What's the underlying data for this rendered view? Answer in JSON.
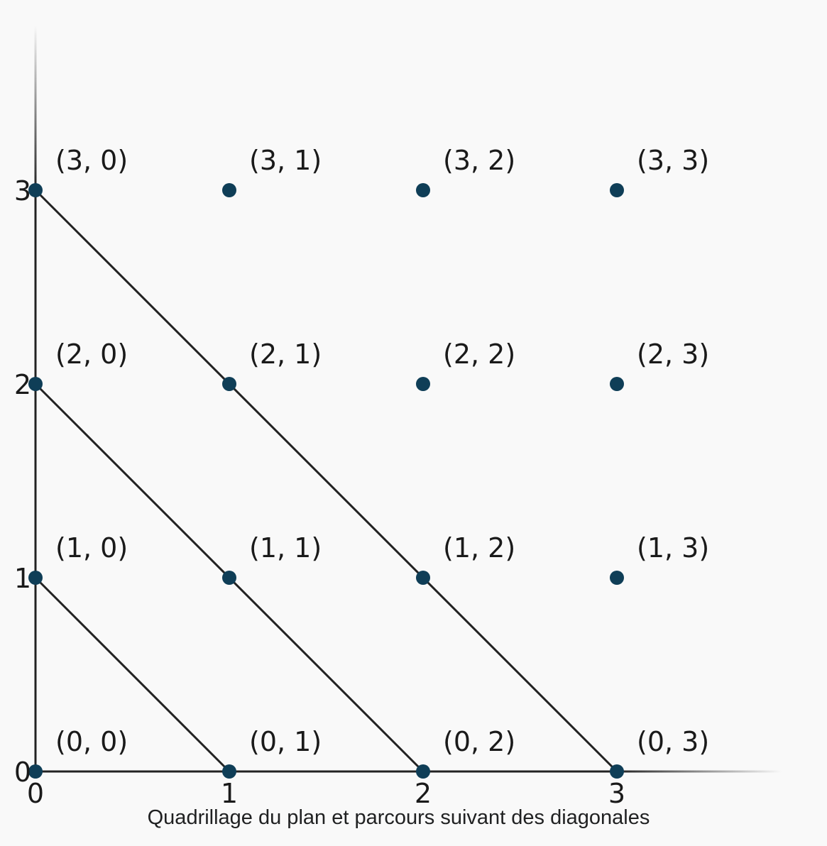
{
  "chart_data": {
    "type": "scatter",
    "title": "",
    "xlabel": "",
    "ylabel": "",
    "xlim": [
      0,
      3.85
    ],
    "ylim": [
      0,
      3.85
    ],
    "x_ticks": [
      "0",
      "1",
      "2",
      "3"
    ],
    "y_ticks": [
      "0",
      "1",
      "2",
      "3"
    ],
    "grid": "dotted",
    "points": [
      {
        "x": 0,
        "y": 0,
        "label": "(0, 0)"
      },
      {
        "x": 1,
        "y": 0,
        "label": "(0, 1)"
      },
      {
        "x": 2,
        "y": 0,
        "label": "(0, 2)"
      },
      {
        "x": 3,
        "y": 0,
        "label": "(0, 3)"
      },
      {
        "x": 0,
        "y": 1,
        "label": "(1, 0)"
      },
      {
        "x": 1,
        "y": 1,
        "label": "(1, 1)"
      },
      {
        "x": 2,
        "y": 1,
        "label": "(1, 2)"
      },
      {
        "x": 3,
        "y": 1,
        "label": "(1, 3)"
      },
      {
        "x": 0,
        "y": 2,
        "label": "(2, 0)"
      },
      {
        "x": 1,
        "y": 2,
        "label": "(2, 1)"
      },
      {
        "x": 2,
        "y": 2,
        "label": "(2, 2)"
      },
      {
        "x": 3,
        "y": 2,
        "label": "(2, 3)"
      },
      {
        "x": 0,
        "y": 3,
        "label": "(3, 0)"
      },
      {
        "x": 1,
        "y": 3,
        "label": "(3, 1)"
      },
      {
        "x": 2,
        "y": 3,
        "label": "(3, 2)"
      },
      {
        "x": 3,
        "y": 3,
        "label": "(3, 3)"
      }
    ],
    "diagonals": [
      {
        "from": [
          0,
          1
        ],
        "to": [
          1,
          0
        ]
      },
      {
        "from": [
          0,
          2
        ],
        "to": [
          2,
          0
        ]
      },
      {
        "from": [
          0,
          3
        ],
        "to": [
          3,
          0
        ]
      }
    ]
  },
  "caption": "Quadrillage du plan et parcours suivant des diagonales",
  "colors": {
    "point": "#0f3e57",
    "line": "#222222",
    "grid": "#8a8a8a",
    "background": "#f9f9f9"
  }
}
